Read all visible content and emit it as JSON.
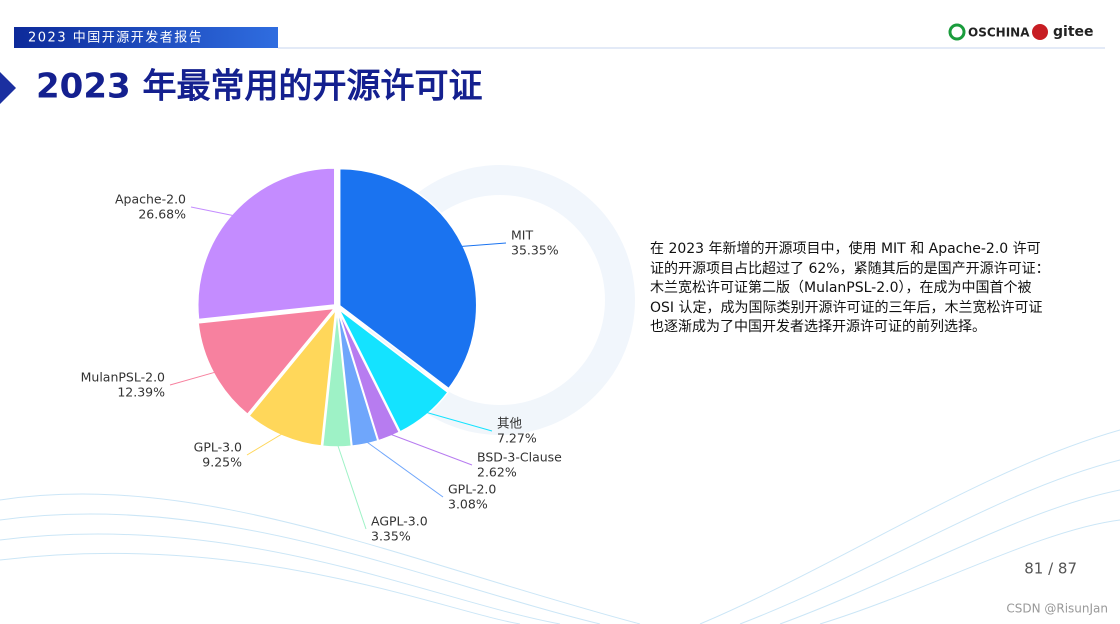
{
  "header": "2023 中国开源开发者报告",
  "logos": [
    "OSCHINA",
    "gitee"
  ],
  "description": "在 2023 年新增的开源项目中，使用 MIT 和 Apache-2.0 许可证的开源项目占比超过了 62%，紧随其后的是国产开源许可证：木兰宽松许可证第二版（MulanPSL-2.0），在成为中国首个被 OSI 认定，成为国际类别开源许可证的三年后，木兰宽松许可证也逐渐成为了中国开发者选择开源许可证的前列选择。",
  "page": "81 / 87",
  "watermark": "CSDN @RisunJan",
  "chart_data": {
    "type": "pie",
    "title": "2023 年最常用的开源许可证",
    "categories": [
      "MIT",
      "其他",
      "BSD-3-Clause",
      "GPL-2.0",
      "AGPL-3.0",
      "GPL-3.0",
      "MulanPSL-2.0",
      "Apache-2.0"
    ],
    "values": [
      35.35,
      7.27,
      2.62,
      3.08,
      3.35,
      9.25,
      12.39,
      26.68
    ],
    "value_labels": [
      "35.35%",
      "7.27%",
      "2.62%",
      "3.08%",
      "3.35%",
      "9.25%",
      "12.39%",
      "26.68%"
    ],
    "colors": [
      "#1a73f0",
      "#14e3ff",
      "#b77cf0",
      "#6fa6fb",
      "#9ef2c6",
      "#ffd75a",
      "#f7819f",
      "#c48cff"
    ]
  }
}
